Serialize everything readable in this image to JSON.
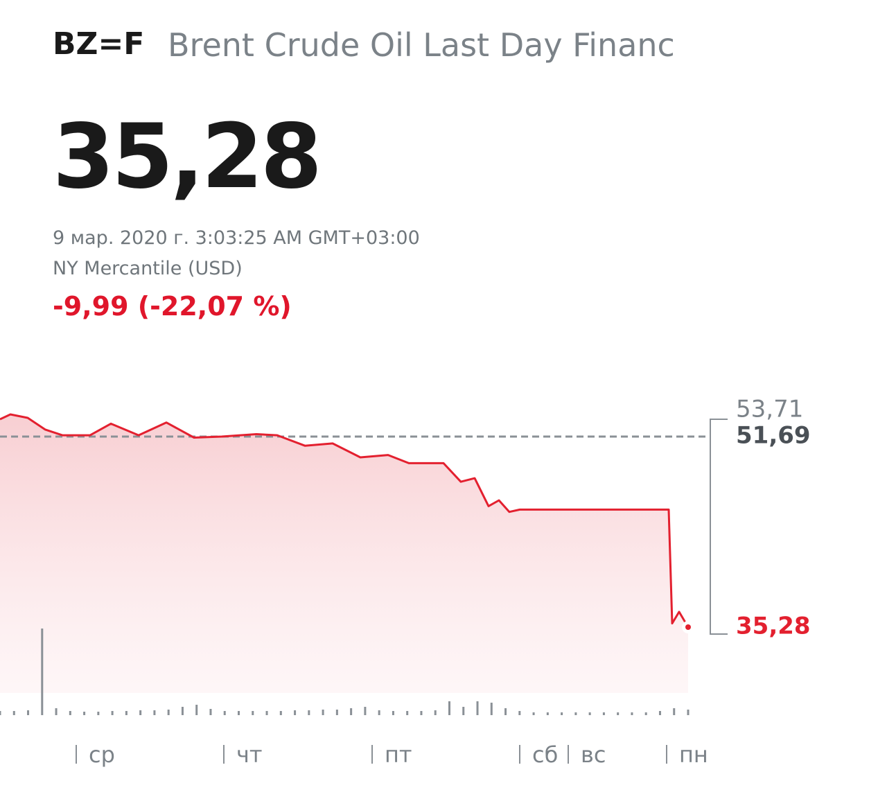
{
  "header": {
    "symbol": "BZ=F",
    "name": "Brent Crude Oil Last Day Financ",
    "price": "35,28",
    "timestamp": "9 мар. 2020 г. 3:03:25 AM GMT+03:00",
    "exchange": "NY Mercantile (USD)",
    "change": "-9,99 (-22,07 %)"
  },
  "chart_data": {
    "type": "line",
    "color": "#e3202f",
    "x": [
      0,
      15,
      40,
      65,
      90,
      130,
      160,
      200,
      240,
      280,
      320,
      370,
      400,
      440,
      480,
      520,
      560,
      590,
      640,
      665,
      685,
      705,
      720,
      735,
      750,
      965,
      970,
      980,
      993
    ],
    "values": [
      53.18,
      53.6,
      53.3,
      52.3,
      51.8,
      51.8,
      52.8,
      51.8,
      52.9,
      51.6,
      51.69,
      51.9,
      51.8,
      50.9,
      51.1,
      49.9,
      50.1,
      49.4,
      49.4,
      47.8,
      48.1,
      45.7,
      46.2,
      45.2,
      45.4,
      45.4,
      35.6,
      36.6,
      35.28
    ],
    "xlim": [
      0,
      1000
    ],
    "ylim": [
      30,
      55
    ],
    "xticks": [
      {
        "value": 110,
        "label": "ср"
      },
      {
        "value": 323,
        "label": "чт"
      },
      {
        "value": 537,
        "label": "пт"
      },
      {
        "value": 750,
        "label": "сб"
      },
      {
        "value": 820,
        "label": "вс"
      },
      {
        "value": 962,
        "label": "пн"
      }
    ],
    "yticks": [
      {
        "value": 53.71,
        "label": "53,71"
      },
      {
        "value": 51.69,
        "label": "51,69"
      },
      {
        "value": 35.28,
        "label": "35,28"
      }
    ],
    "volume": {
      "color": "#8a9096",
      "ylim": [
        0,
        130
      ],
      "values": [
        6,
        6,
        7,
        125,
        10,
        6,
        5,
        5,
        6,
        6,
        7,
        7,
        8,
        12,
        15,
        9,
        6,
        6,
        6,
        6,
        6,
        7,
        7,
        8,
        8,
        10,
        12,
        7,
        6,
        6,
        6,
        7,
        20,
        12,
        20,
        18,
        10,
        6,
        4,
        4,
        4,
        4,
        4,
        4,
        4,
        4,
        4,
        6,
        10,
        8
      ]
    }
  }
}
